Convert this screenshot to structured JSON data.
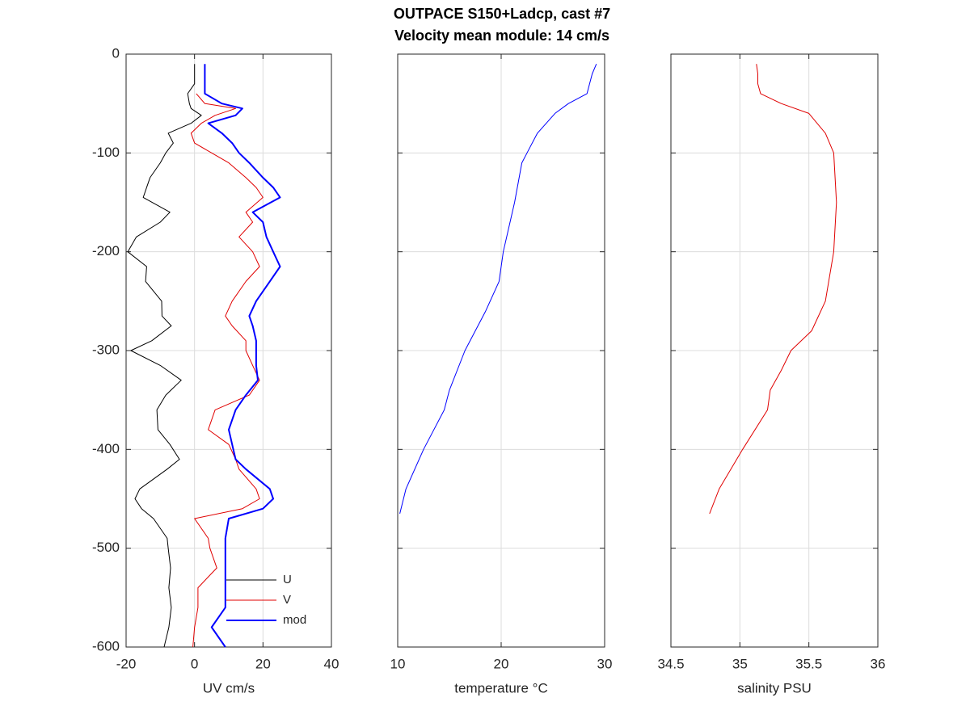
{
  "chart_data": [
    {
      "type": "line",
      "title": [
        "OUTPACE S150+Ladcp, cast #7",
        "Velocity mean module:  14 cm/s"
      ],
      "xlabel": "UV cm/s",
      "y": [
        -10,
        -30,
        -40,
        -50,
        -55,
        -62,
        -70,
        -80,
        -90,
        -100,
        -110,
        -125,
        -135,
        -145,
        -160,
        -170,
        -185,
        -200,
        -215,
        -230,
        -250,
        -265,
        -275,
        -290,
        -300,
        -315,
        -330,
        -345,
        -360,
        -380,
        -395,
        -410,
        -420,
        -440,
        -450,
        -460,
        -470,
        -490,
        -500,
        -520,
        -540,
        -560,
        -580,
        -600
      ],
      "series": [
        {
          "name": "U",
          "color": "#000000",
          "linewidth": 1,
          "values": [
            0,
            0,
            -2,
            -1.5,
            -1,
            2,
            -1,
            -7.7,
            -6.2,
            -8.4,
            -10,
            -13,
            -14,
            -15,
            -7.2,
            -10,
            -17,
            -19.5,
            -14,
            -14.3,
            -9.6,
            -9.5,
            -6.8,
            -12.5,
            -18.6,
            -10,
            -3.9,
            -8.4,
            -11,
            -10.7,
            -7.2,
            -4.4,
            -8,
            -16,
            -17.4,
            -15.5,
            -12,
            -8,
            -7.7,
            -7,
            -7.5,
            -6.8,
            -7.5,
            -8.9
          ]
        },
        {
          "name": "V",
          "color": "#e00000",
          "linewidth": 1,
          "values": [
            null,
            null,
            0.5,
            3,
            12,
            6,
            2,
            -1,
            0,
            5,
            10,
            15,
            18,
            20,
            15,
            17,
            13,
            17,
            19,
            15,
            11,
            9,
            11,
            15,
            15,
            17,
            19,
            16,
            6,
            4,
            10,
            12,
            13,
            18,
            19,
            14,
            0,
            4,
            4.5,
            6.5,
            1,
            1,
            0,
            -0.5
          ]
        },
        {
          "name": "mod",
          "color": "#0000ff",
          "linewidth": 2,
          "values": [
            3,
            3,
            3,
            8,
            14,
            12,
            4,
            8,
            11,
            13,
            16,
            20,
            23,
            25,
            17,
            20,
            21,
            23,
            25,
            22,
            18,
            16,
            17,
            18,
            18,
            18,
            18.5,
            15,
            12,
            10,
            11,
            12,
            15,
            22,
            23,
            20,
            10,
            9,
            9,
            9,
            9,
            9,
            5,
            9
          ]
        }
      ],
      "xlim": [
        -20,
        40
      ],
      "xticks": [
        -20,
        0,
        20,
        40
      ],
      "ylim": [
        -600,
        0
      ],
      "yticks": [
        -600,
        -500,
        -400,
        -300,
        -200,
        -100,
        0
      ],
      "grid": true,
      "legend": "lower right"
    },
    {
      "type": "line",
      "xlabel": "temperature °C",
      "y": [
        -10,
        -20,
        -40,
        -50,
        -60,
        -80,
        -100,
        -110,
        -150,
        -200,
        -230,
        -260,
        -300,
        -340,
        -360,
        -400,
        -440,
        -465
      ],
      "series": [
        {
          "color": "#0000ff",
          "linewidth": 1,
          "values": [
            29.2,
            28.8,
            28.3,
            26.5,
            25.2,
            23.5,
            22.5,
            22,
            21.3,
            20.2,
            19.8,
            18.5,
            16.5,
            15,
            14.5,
            12.5,
            10.8,
            10.2
          ]
        }
      ],
      "xlim": [
        10,
        30
      ],
      "xticks": [
        10,
        20,
        30
      ],
      "ylim": [
        -600,
        0
      ],
      "yticks": [
        -600,
        -500,
        -400,
        -300,
        -200,
        -100,
        0
      ],
      "grid": true
    },
    {
      "type": "line",
      "xlabel": "salinity PSU",
      "y": [
        -10,
        -20,
        -30,
        -40,
        -50,
        -60,
        -80,
        -100,
        -150,
        -200,
        -250,
        -280,
        -300,
        -320,
        -340,
        -360,
        -400,
        -440,
        -465
      ],
      "series": [
        {
          "color": "#e00000",
          "linewidth": 1,
          "values": [
            35.12,
            35.13,
            35.13,
            35.15,
            35.3,
            35.5,
            35.62,
            35.68,
            35.7,
            35.68,
            35.62,
            35.52,
            35.37,
            35.3,
            35.22,
            35.2,
            35.02,
            34.85,
            34.78
          ]
        }
      ],
      "xlim": [
        34.5,
        36
      ],
      "xticks": [
        34.5,
        35,
        35.5,
        36
      ],
      "ylim": [
        -600,
        0
      ],
      "yticks": [
        -600,
        -500,
        -400,
        -300,
        -200,
        -100,
        0
      ],
      "grid": true
    }
  ]
}
